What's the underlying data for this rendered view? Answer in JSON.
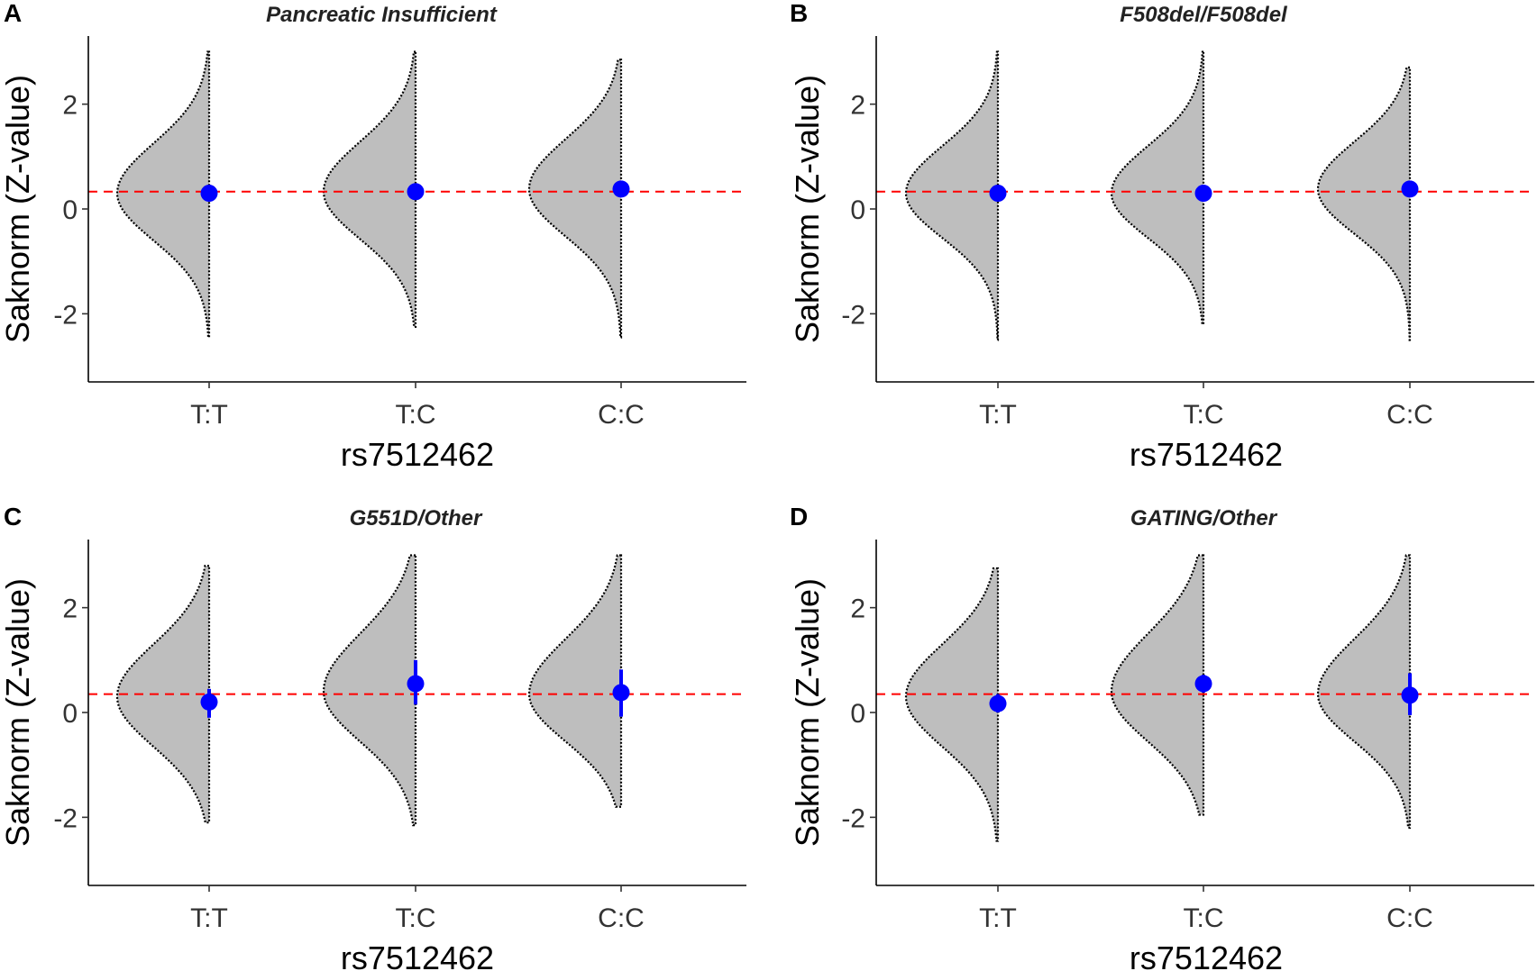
{
  "chart_data": [
    {
      "type": "violin",
      "panel_label": "A",
      "title": "Pancreatic Insufficient",
      "xlabel": "rs7512462",
      "ylabel": "Saknorm (Z-value)",
      "categories": [
        "T:T",
        "T:C",
        "C:C"
      ],
      "y_ticks": [
        2,
        0,
        -2
      ],
      "y_tick_labels": [
        "2",
        "0",
        "-2"
      ],
      "ylim": [
        -3.3,
        3.3
      ],
      "reference_line": 0.33,
      "points": [
        {
          "category": "T:T",
          "mean": 0.3,
          "ci_low": 0.22,
          "ci_high": 0.38
        },
        {
          "category": "T:C",
          "mean": 0.33,
          "ci_low": 0.26,
          "ci_high": 0.4
        },
        {
          "category": "C:C",
          "mean": 0.38,
          "ci_low": 0.27,
          "ci_high": 0.49
        }
      ],
      "violins": [
        {
          "category": "T:T",
          "min": -2.45,
          "max": 3.0,
          "mode": 0.3,
          "sd_lower": 0.9,
          "sd_upper": 0.95
        },
        {
          "category": "T:C",
          "min": -2.25,
          "max": 3.0,
          "mode": 0.33,
          "sd_lower": 0.9,
          "sd_upper": 0.95
        },
        {
          "category": "C:C",
          "min": -2.45,
          "max": 2.85,
          "mode": 0.38,
          "sd_lower": 0.9,
          "sd_upper": 0.95
        }
      ],
      "colors": {
        "violin_fill": "#bebebe",
        "point": "#0000ff",
        "reference": "#ff0000"
      }
    },
    {
      "type": "violin",
      "panel_label": "B",
      "title": "F508del/F508del",
      "xlabel": "rs7512462",
      "ylabel": "Saknorm (Z-value)",
      "categories": [
        "T:T",
        "T:C",
        "C:C"
      ],
      "y_ticks": [
        2,
        0,
        -2
      ],
      "y_tick_labels": [
        "2",
        "0",
        "-2"
      ],
      "ylim": [
        -3.3,
        3.3
      ],
      "reference_line": 0.33,
      "points": [
        {
          "category": "T:T",
          "mean": 0.3,
          "ci_low": 0.2,
          "ci_high": 0.4
        },
        {
          "category": "T:C",
          "mean": 0.3,
          "ci_low": 0.21,
          "ci_high": 0.39
        },
        {
          "category": "C:C",
          "mean": 0.38,
          "ci_low": 0.27,
          "ci_high": 0.49
        }
      ],
      "violins": [
        {
          "category": "T:T",
          "min": -2.5,
          "max": 3.0,
          "mode": 0.3,
          "sd_lower": 0.85,
          "sd_upper": 0.9
        },
        {
          "category": "T:C",
          "min": -2.2,
          "max": 3.0,
          "mode": 0.3,
          "sd_lower": 0.85,
          "sd_upper": 0.9
        },
        {
          "category": "C:C",
          "min": -2.5,
          "max": 2.7,
          "mode": 0.38,
          "sd_lower": 0.85,
          "sd_upper": 0.9
        }
      ],
      "colors": {
        "violin_fill": "#bebebe",
        "point": "#0000ff",
        "reference": "#ff0000"
      }
    },
    {
      "type": "violin",
      "panel_label": "C",
      "title": "G551D/Other",
      "xlabel": "rs7512462",
      "ylabel": "Saknorm (Z-value)",
      "categories": [
        "T:T",
        "T:C",
        "C:C"
      ],
      "y_ticks": [
        2,
        0,
        -2
      ],
      "y_tick_labels": [
        "2",
        "0",
        "-2"
      ],
      "ylim": [
        -3.3,
        3.3
      ],
      "reference_line": 0.35,
      "points": [
        {
          "category": "T:T",
          "mean": 0.2,
          "ci_low": -0.1,
          "ci_high": 0.45
        },
        {
          "category": "T:C",
          "mean": 0.55,
          "ci_low": 0.15,
          "ci_high": 1.0
        },
        {
          "category": "C:C",
          "mean": 0.38,
          "ci_low": -0.08,
          "ci_high": 0.82
        }
      ],
      "violins": [
        {
          "category": "T:T",
          "min": -2.1,
          "max": 2.8,
          "mode": 0.3,
          "sd_lower": 0.95,
          "sd_upper": 1.0
        },
        {
          "category": "T:C",
          "min": -2.15,
          "max": 3.0,
          "mode": 0.4,
          "sd_lower": 0.95,
          "sd_upper": 1.1
        },
        {
          "category": "C:C",
          "min": -1.8,
          "max": 3.0,
          "mode": 0.35,
          "sd_lower": 0.9,
          "sd_upper": 1.05
        }
      ],
      "colors": {
        "violin_fill": "#bebebe",
        "point": "#0000ff",
        "reference": "#ff0000"
      }
    },
    {
      "type": "violin",
      "panel_label": "D",
      "title": "GATING/Other",
      "xlabel": "rs7512462",
      "ylabel": "Saknorm (Z-value)",
      "categories": [
        "T:T",
        "T:C",
        "C:C"
      ],
      "y_ticks": [
        2,
        0,
        -2
      ],
      "y_tick_labels": [
        "2",
        "0",
        "-2"
      ],
      "ylim": [
        -3.3,
        3.3
      ],
      "reference_line": 0.35,
      "points": [
        {
          "category": "T:T",
          "mean": 0.17,
          "ci_low": 0.0,
          "ci_high": 0.35
        },
        {
          "category": "T:C",
          "mean": 0.55,
          "ci_low": 0.38,
          "ci_high": 0.72
        },
        {
          "category": "C:C",
          "mean": 0.33,
          "ci_low": -0.05,
          "ci_high": 0.75
        }
      ],
      "violins": [
        {
          "category": "T:T",
          "min": -2.45,
          "max": 2.75,
          "mode": 0.3,
          "sd_lower": 0.95,
          "sd_upper": 1.0
        },
        {
          "category": "T:C",
          "min": -1.95,
          "max": 3.0,
          "mode": 0.4,
          "sd_lower": 0.95,
          "sd_upper": 1.1
        },
        {
          "category": "C:C",
          "min": -2.2,
          "max": 3.0,
          "mode": 0.35,
          "sd_lower": 0.9,
          "sd_upper": 1.05
        }
      ],
      "colors": {
        "violin_fill": "#bebebe",
        "point": "#0000ff",
        "reference": "#ff0000"
      }
    }
  ]
}
